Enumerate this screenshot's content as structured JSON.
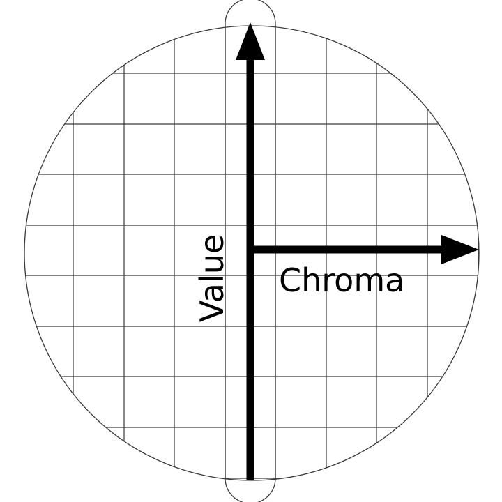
{
  "labels": {
    "value_axis": "Value",
    "chroma_axis": "Chroma"
  },
  "colors": {
    "background": "#ffffff",
    "grid_line": "#3a3a3a",
    "axis": "#000000",
    "text": "#000000"
  }
}
